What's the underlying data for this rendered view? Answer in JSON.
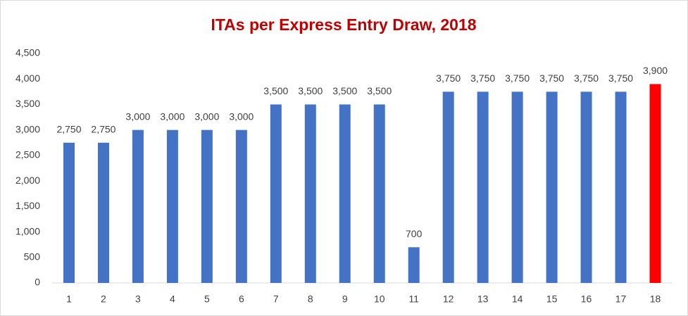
{
  "chart_data": {
    "type": "bar",
    "title": "ITAs per Express Entry Draw, 2018",
    "categories": [
      "1",
      "2",
      "3",
      "4",
      "5",
      "6",
      "7",
      "8",
      "9",
      "10",
      "11",
      "12",
      "13",
      "14",
      "15",
      "16",
      "17",
      "18"
    ],
    "values": [
      2750,
      2750,
      3000,
      3000,
      3000,
      3000,
      3500,
      3500,
      3500,
      3500,
      700,
      3750,
      3750,
      3750,
      3750,
      3750,
      3750,
      3900
    ],
    "value_labels": [
      "2,750",
      "2,750",
      "3,000",
      "3,000",
      "3,000",
      "3,000",
      "3,500",
      "3,500",
      "3,500",
      "3,500",
      "700",
      "3,750",
      "3,750",
      "3,750",
      "3,750",
      "3,750",
      "3,750",
      "3,900"
    ],
    "colors": [
      "#4472c4",
      "#4472c4",
      "#4472c4",
      "#4472c4",
      "#4472c4",
      "#4472c4",
      "#4472c4",
      "#4472c4",
      "#4472c4",
      "#4472c4",
      "#4472c4",
      "#4472c4",
      "#4472c4",
      "#4472c4",
      "#4472c4",
      "#4472c4",
      "#4472c4",
      "#ff0000"
    ],
    "ylim": [
      0,
      4500
    ],
    "yticks": [
      0,
      500,
      {
        "value": 1000,
        "label": "1,000"
      },
      {
        "value": 1500,
        "label": "1,500"
      },
      {
        "value": 2000,
        "label": "2,000"
      },
      {
        "value": 2500,
        "label": "2,500"
      },
      {
        "value": 3000,
        "label": "3,000"
      },
      {
        "value": 3500,
        "label": "3,500"
      },
      {
        "value": 4000,
        "label": "4,000"
      },
      {
        "value": 4500,
        "label": "4,500"
      }
    ],
    "grid": false
  }
}
